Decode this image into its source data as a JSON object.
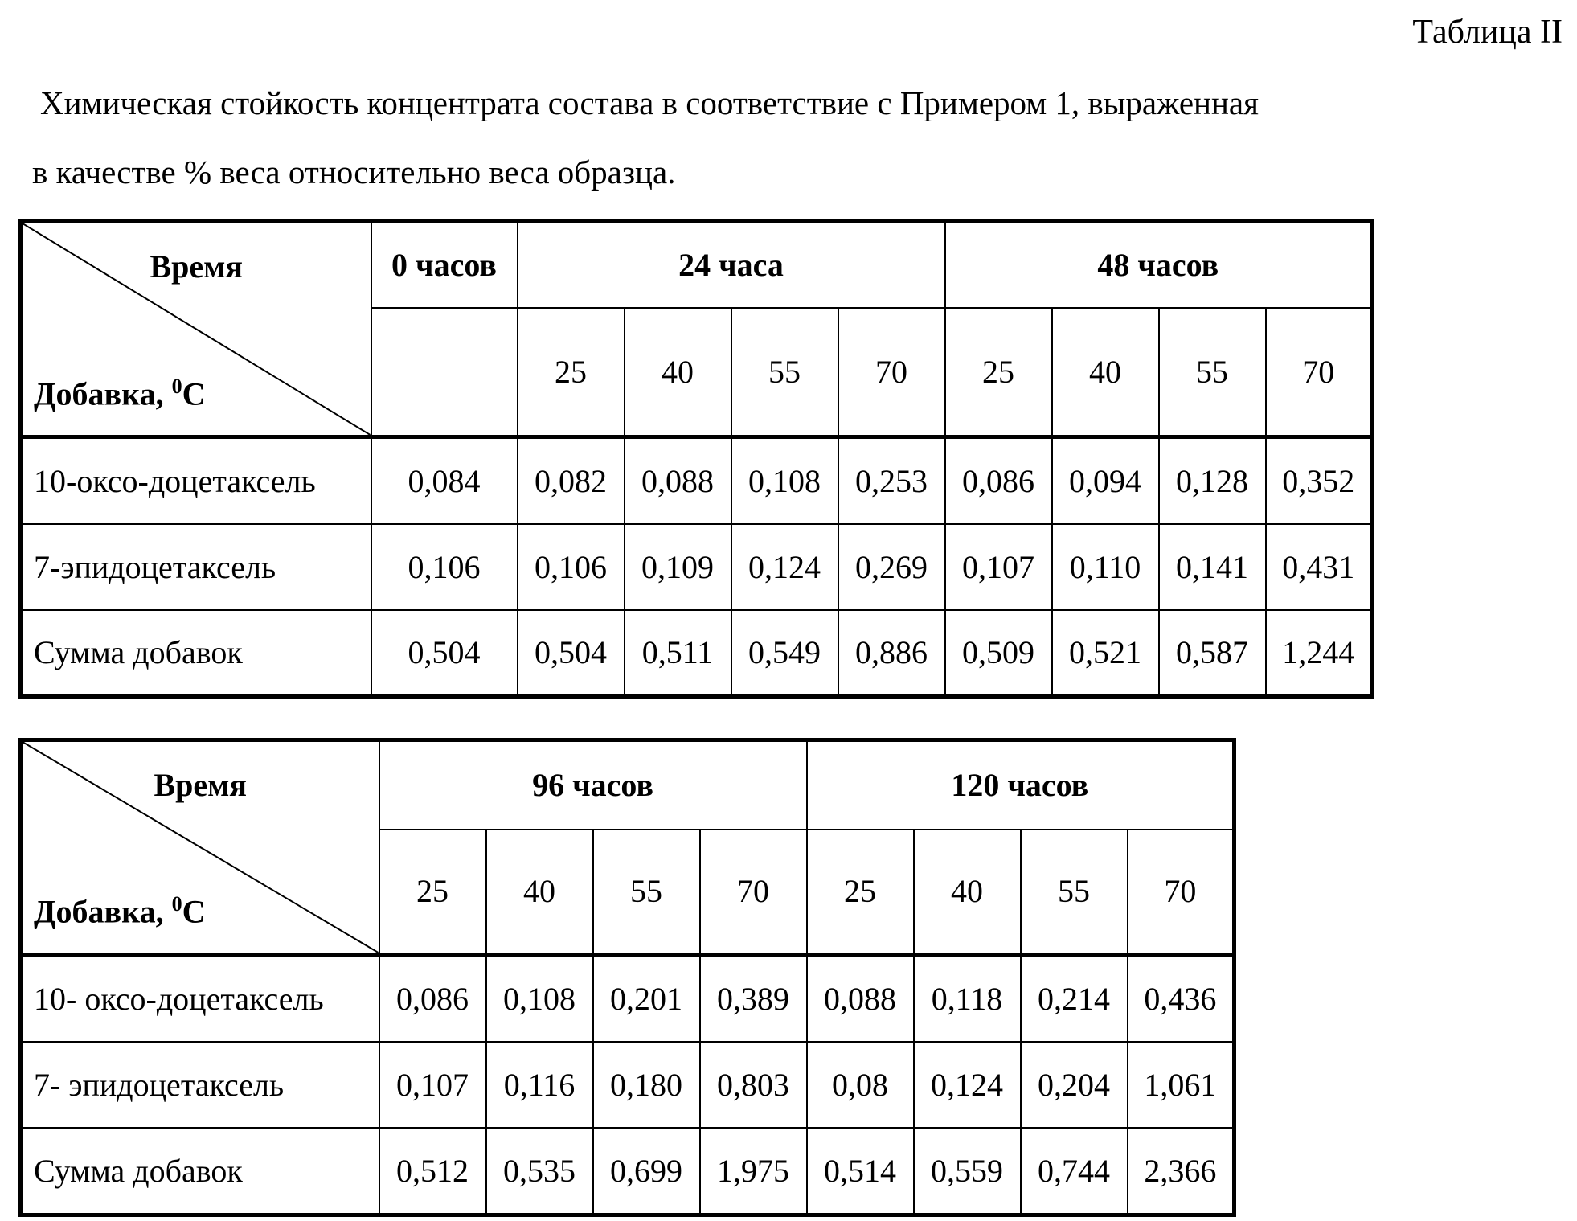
{
  "caption": "Таблица II",
  "title_lines": [
    "Химическая стойкость концентрата состава в соответствие с Примером 1, выраженная",
    "в качестве % веса относительно веса образца."
  ],
  "tables": [
    {
      "corner_top": "Время",
      "corner_bottom": "Добавка, ",
      "corner_sup": "0",
      "corner_unit": "C",
      "groups": [
        {
          "label": "0 часов",
          "temps": []
        },
        {
          "label": "24 часа",
          "temps": [
            "25",
            "40",
            "55",
            "70"
          ]
        },
        {
          "label": "48 часов",
          "temps": [
            "25",
            "40",
            "55",
            "70"
          ]
        }
      ],
      "rows": [
        {
          "label": "10-оксо-доцетаксель",
          "values": [
            "0,084",
            "0,082",
            "0,088",
            "0,108",
            "0,253",
            "0,086",
            "0,094",
            "0,128",
            "0,352"
          ]
        },
        {
          "label": "7-эпидоцетаксель",
          "values": [
            "0,106",
            "0,106",
            "0,109",
            "0,124",
            "0,269",
            "0,107",
            "0,110",
            "0,141",
            "0,431"
          ]
        },
        {
          "label": "Сумма добавок",
          "values": [
            "0,504",
            "0,504",
            "0,511",
            "0,549",
            "0,886",
            "0,509",
            "0,521",
            "0,587",
            "1,244"
          ]
        }
      ]
    },
    {
      "corner_top": "Время",
      "corner_bottom": "Добавка, ",
      "corner_sup": "0",
      "corner_unit": "C",
      "groups": [
        {
          "label": "96 часов",
          "temps": [
            "25",
            "40",
            "55",
            "70"
          ]
        },
        {
          "label": "120 часов",
          "temps": [
            "25",
            "40",
            "55",
            "70"
          ]
        }
      ],
      "rows": [
        {
          "label": "10- оксо-доцетаксель",
          "values": [
            "0,086",
            "0,108",
            "0,201",
            "0,389",
            "0,088",
            "0,118",
            "0,214",
            "0,436"
          ]
        },
        {
          "label": "7- эпидоцетаксель",
          "values": [
            "0,107",
            "0,116",
            "0,180",
            "0,803",
            "0,08",
            "0,124",
            "0,204",
            "1,061"
          ]
        },
        {
          "label": "Сумма добавок",
          "values": [
            "0,512",
            "0,535",
            "0,699",
            "1,975",
            "0,514",
            "0,559",
            "0,744",
            "2,366"
          ]
        }
      ]
    }
  ]
}
